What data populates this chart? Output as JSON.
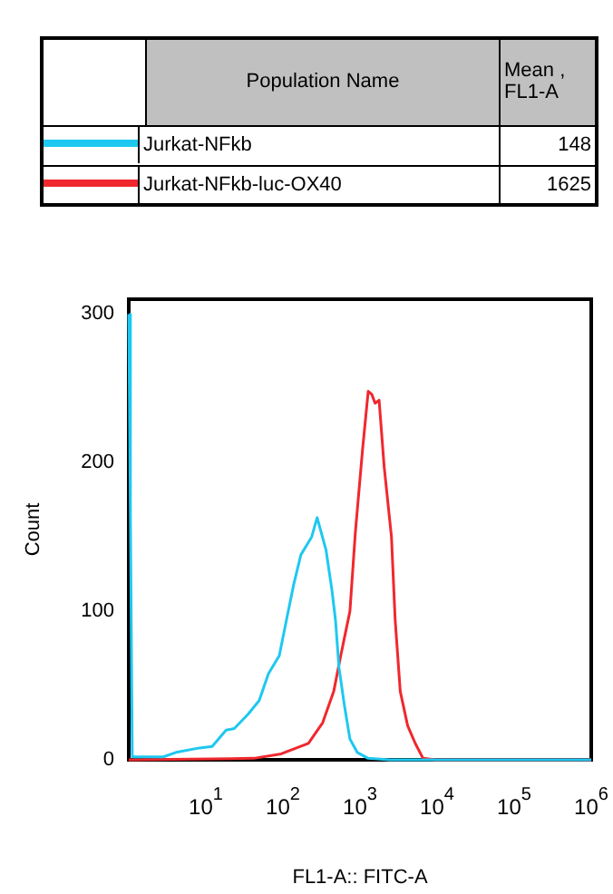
{
  "chart_data": {
    "type": "line",
    "xlabel": "FL1-A:: FITC-A",
    "ylabel": "Count",
    "log": "x",
    "legend": "top",
    "marker": "none",
    "line_style": "solid",
    "grid": false,
    "annotations": [
      "Population Name",
      "Mean , FL1-A",
      "148",
      "1625"
    ],
    "xlim": [
      1,
      1000000
    ],
    "xticks": [
      {
        "value": 10,
        "label": "10$^{1}$"
      },
      {
        "value": 100,
        "label": "10$^{2}$"
      },
      {
        "value": 1000,
        "label": "10$^{3}$"
      },
      {
        "value": 10000,
        "label": "10$^{4}$"
      },
      {
        "value": 100000,
        "label": "10$^{5}$"
      },
      {
        "value": 1000000,
        "label": "10$^{6}$"
      }
    ],
    "ylim": [
      0,
      310
    ],
    "yticks": [
      0,
      100,
      200,
      300
    ],
    "series": [
      {
        "name": "Jurkat-NFkb",
        "color": "#1ec8f0",
        "x": [
          1,
          1.05,
          1.11,
          2.8,
          4.1,
          8.3,
          12.1,
          18.3,
          23.4,
          35.7,
          49.3,
          64.9,
          89.6,
          111,
          138,
          171,
          236,
          278,
          363,
          433,
          481,
          534,
          626,
          740,
          920,
          1278,
          2430,
          9500,
          1000000
        ],
        "values": [
          300,
          165,
          2,
          2,
          5,
          8,
          9,
          20,
          21,
          31,
          40,
          58,
          70,
          94,
          118,
          138,
          150,
          163,
          141,
          114,
          94,
          62,
          37,
          14,
          5,
          1,
          0,
          0,
          0
        ]
      },
      {
        "name": "Jurkat-NFkb-luc-OX40",
        "color": "#f0282d",
        "x": [
          1,
          42,
          95,
          214,
          328,
          456,
          562,
          740,
          870,
          1080,
          1278,
          1420,
          1570,
          1770,
          2060,
          2560,
          2860,
          3330,
          4150,
          5220,
          6570,
          9500,
          1000000
        ],
        "values": [
          0,
          1,
          4,
          11,
          25,
          46,
          70,
          100,
          153,
          209,
          248,
          246,
          240,
          242,
          197,
          150,
          94,
          46,
          23,
          11,
          1,
          0,
          0
        ]
      }
    ]
  }
}
